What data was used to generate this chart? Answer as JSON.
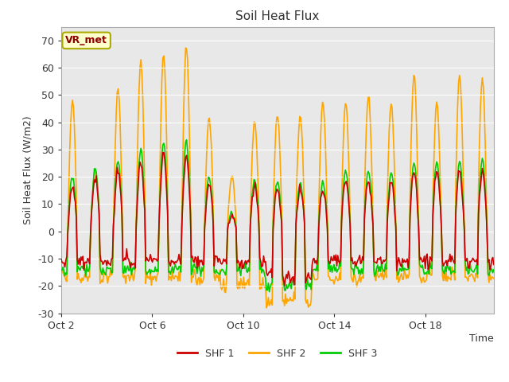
{
  "title": "Soil Heat Flux",
  "ylabel": "Soil Heat Flux (W/m2)",
  "xlabel": "Time",
  "ylim": [
    -30,
    75
  ],
  "yticks": [
    -30,
    -20,
    -10,
    0,
    10,
    20,
    30,
    40,
    50,
    60,
    70
  ],
  "xtick_labels": [
    "Oct 2",
    "Oct 6",
    "Oct 10",
    "Oct 14",
    "Oct 18"
  ],
  "legend_labels": [
    "SHF 1",
    "SHF 2",
    "SHF 3"
  ],
  "colors": {
    "SHF1": "#cc0000",
    "SHF2": "#ffa500",
    "SHF3": "#00cc00"
  },
  "fig_bg": "#ffffff",
  "plot_bg": "#e8e8e8",
  "watermark_text": "VR_met",
  "watermark_color": "#8b0000",
  "watermark_bg": "#ffffcc",
  "watermark_border": "#aaaa00",
  "n_days": 19,
  "peaks2": [
    48,
    22,
    52,
    62,
    65,
    68,
    42,
    20,
    40,
    43,
    42,
    47,
    47,
    50,
    47,
    57,
    47,
    57,
    56
  ],
  "peaks3": [
    20,
    23,
    26,
    30,
    33,
    33,
    20,
    7,
    19,
    18,
    18,
    18,
    22,
    22,
    21,
    25,
    26,
    26,
    26
  ],
  "night2": -17,
  "night3": -14,
  "night1": -11,
  "seed": 42
}
